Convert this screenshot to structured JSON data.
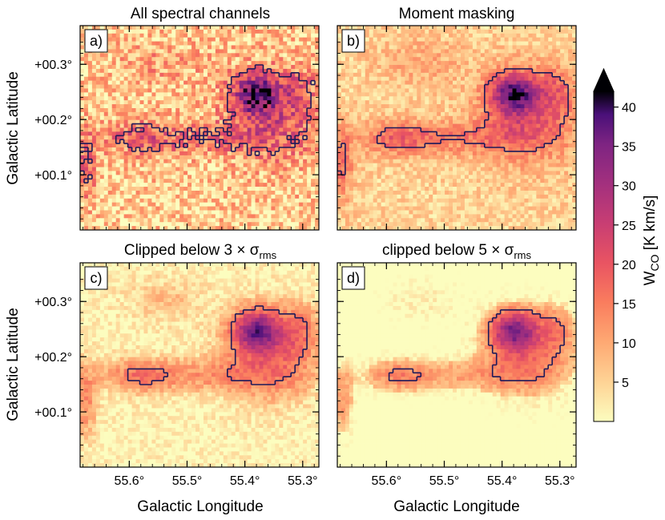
{
  "chart_data": {
    "type": "heatmap",
    "colormap": "magma_r",
    "colorbar": {
      "label_main": "W",
      "label_sub": "CO",
      "label_unit": " [K km/s]",
      "ticks": [
        5,
        10,
        15,
        20,
        25,
        30,
        35,
        40
      ],
      "range": [
        0,
        42
      ],
      "extend": "max"
    },
    "x_axis": {
      "label": "Galactic Longitude",
      "ticks": [
        {
          "value": 55.6,
          "label": "55.6°"
        },
        {
          "value": 55.5,
          "label": "55.5°"
        },
        {
          "value": 55.4,
          "label": "55.4°"
        },
        {
          "value": 55.3,
          "label": "55.3°"
        }
      ],
      "range": [
        55.685,
        55.272
      ]
    },
    "y_axis": {
      "label": "Galactic Latitude",
      "ticks": [
        {
          "value": 0.1,
          "label": "+00.1°"
        },
        {
          "value": 0.2,
          "label": "+00.2°"
        },
        {
          "value": 0.3,
          "label": "+00.3°"
        }
      ],
      "range": [
        0.0,
        0.37
      ]
    },
    "panels": [
      {
        "tag": "a)",
        "title": "All spectral channels",
        "noise": 0.9,
        "floor": 6,
        "peak": 33,
        "threshold": 10
      },
      {
        "tag": "b)",
        "title": "Moment masking",
        "noise": 0.45,
        "floor": 5,
        "peak": 32,
        "threshold": 10
      },
      {
        "tag": "c)",
        "title_prefix": "Clipped below 3 × σ",
        "title_sub": "rms",
        "noise": 0.35,
        "floor": 2.5,
        "peak": 31,
        "threshold": 12
      },
      {
        "tag": "d)",
        "title_prefix": "clipped below 5 × σ",
        "title_sub": "rms",
        "noise": 0.3,
        "floor": 0.5,
        "peak": 30,
        "threshold": 13
      }
    ]
  }
}
